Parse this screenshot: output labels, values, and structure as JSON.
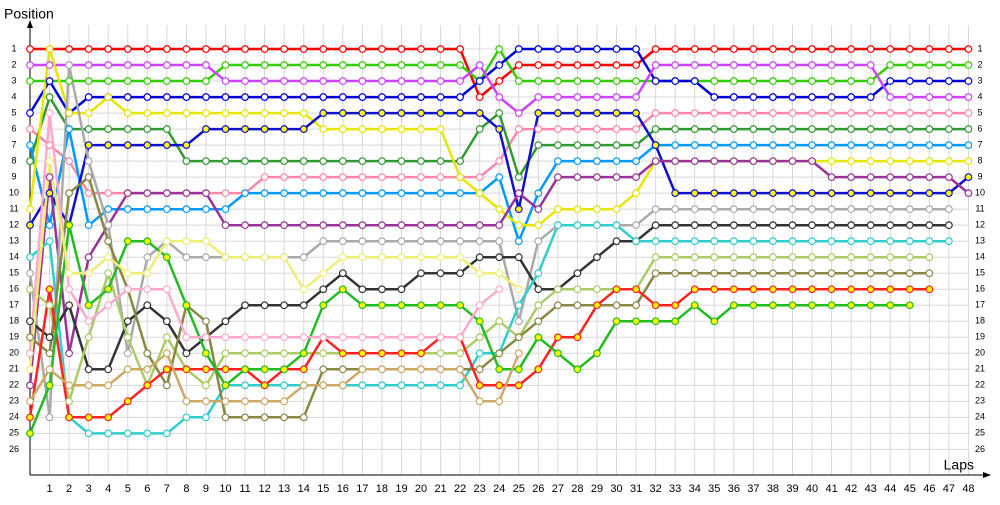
{
  "chart_data": {
    "type": "line",
    "y_label": "Position",
    "x_label": "Laps",
    "inverted_y": true,
    "grid": true,
    "x": [
      0,
      1,
      2,
      3,
      4,
      5,
      6,
      7,
      8,
      9,
      10,
      11,
      12,
      13,
      14,
      15,
      16,
      17,
      18,
      19,
      20,
      21,
      22,
      23,
      24,
      25,
      26,
      27,
      28,
      29,
      30,
      31,
      32,
      33,
      34,
      35,
      36,
      37,
      38,
      39,
      40,
      41,
      42,
      43,
      44,
      45,
      46,
      47,
      48
    ],
    "xlim": [
      0,
      49
    ],
    "xticks": [
      1,
      2,
      3,
      4,
      5,
      6,
      7,
      8,
      9,
      10,
      11,
      12,
      13,
      14,
      15,
      16,
      17,
      18,
      19,
      20,
      21,
      22,
      23,
      24,
      25,
      26,
      27,
      28,
      29,
      30,
      31,
      32,
      33,
      34,
      35,
      36,
      37,
      38,
      39,
      40,
      41,
      42,
      43,
      44,
      45,
      46,
      47,
      48
    ],
    "ylim": [
      27.6,
      0
    ],
    "yticks": [
      1,
      2,
      3,
      4,
      5,
      6,
      7,
      8,
      9,
      10,
      11,
      12,
      13,
      14,
      15,
      16,
      17,
      18,
      19,
      20,
      21,
      22,
      23,
      24,
      25,
      26
    ],
    "series": [
      {
        "color": "#ff0000",
        "values": [
          1,
          1,
          1,
          1,
          1,
          1,
          1,
          1,
          1,
          1,
          1,
          1,
          1,
          1,
          1,
          1,
          1,
          1,
          1,
          1,
          1,
          1,
          1,
          4,
          3,
          2,
          2,
          2,
          2,
          2,
          2,
          2,
          1,
          1,
          1,
          1,
          1,
          1,
          1,
          1,
          1,
          1,
          1,
          1,
          1,
          1,
          1,
          1,
          1
        ]
      },
      {
        "color": "#33cc00",
        "values": [
          3,
          3,
          3,
          3,
          3,
          3,
          3,
          3,
          3,
          3,
          2,
          2,
          2,
          2,
          2,
          2,
          2,
          2,
          2,
          2,
          2,
          2,
          2,
          3,
          1,
          3,
          3,
          3,
          3,
          3,
          3,
          3,
          3,
          3,
          3,
          3,
          3,
          3,
          3,
          3,
          3,
          3,
          3,
          3,
          2,
          2,
          2,
          2,
          2
        ]
      },
      {
        "color": "#0000dd",
        "values": [
          5,
          3,
          5,
          4,
          4,
          4,
          4,
          4,
          4,
          4,
          4,
          4,
          4,
          4,
          4,
          4,
          4,
          4,
          4,
          4,
          4,
          4,
          4,
          3,
          2,
          1,
          1,
          1,
          1,
          1,
          1,
          1,
          3,
          3,
          3,
          4,
          4,
          4,
          4,
          4,
          4,
          4,
          4,
          4,
          3,
          3,
          3,
          3,
          3
        ]
      },
      {
        "color": "#cc44ff",
        "values": [
          2,
          2,
          2,
          2,
          2,
          2,
          2,
          2,
          2,
          2,
          3,
          3,
          3,
          3,
          3,
          3,
          3,
          3,
          3,
          3,
          3,
          3,
          3,
          2,
          4,
          5,
          4,
          4,
          4,
          4,
          4,
          4,
          2,
          2,
          2,
          2,
          2,
          2,
          2,
          2,
          2,
          2,
          2,
          2,
          4,
          4,
          4,
          4,
          4
        ]
      },
      {
        "color": "#ff88aa",
        "values": [
          6,
          7,
          8,
          10,
          10,
          10,
          10,
          10,
          10,
          10,
          10,
          10,
          9,
          9,
          9,
          9,
          9,
          9,
          9,
          9,
          9,
          9,
          9,
          9,
          8,
          6,
          6,
          6,
          6,
          6,
          6,
          6,
          5,
          5,
          5,
          5,
          5,
          5,
          5,
          5,
          5,
          5,
          5,
          5,
          5,
          5,
          5,
          5,
          5
        ]
      },
      {
        "color": "#339933",
        "values": [
          8,
          4,
          6,
          6,
          6,
          6,
          6,
          6,
          8,
          8,
          8,
          8,
          8,
          8,
          8,
          8,
          8,
          8,
          8,
          8,
          8,
          8,
          8,
          6,
          5,
          9,
          7,
          7,
          7,
          7,
          7,
          7,
          6,
          6,
          6,
          6,
          6,
          6,
          6,
          6,
          6,
          6,
          6,
          6,
          6,
          6,
          6,
          6,
          6
        ]
      },
      {
        "color": "#0099ff",
        "values": [
          7,
          12,
          6,
          12,
          11,
          11,
          11,
          11,
          11,
          11,
          11,
          10,
          10,
          10,
          10,
          10,
          10,
          10,
          10,
          10,
          10,
          10,
          10,
          10,
          9,
          13,
          10,
          8,
          8,
          8,
          8,
          8,
          7,
          7,
          7,
          7,
          7,
          7,
          7,
          7,
          7,
          7,
          7,
          7,
          7,
          7,
          7,
          7,
          7
        ]
      },
      {
        "color": "#e6e600",
        "values": [
          11,
          1,
          5,
          5,
          4,
          5,
          5,
          5,
          5,
          5,
          5,
          5,
          5,
          5,
          5,
          6,
          6,
          6,
          6,
          6,
          6,
          6,
          9,
          10,
          11,
          12,
          12,
          11,
          11,
          11,
          11,
          10,
          8,
          8,
          8,
          8,
          8,
          8,
          8,
          8,
          8,
          8,
          8,
          8,
          8,
          8,
          8,
          8,
          8
        ]
      },
      {
        "color": "#1111cc",
        "marker_color": "#ffff00",
        "values": [
          12,
          10,
          12,
          7,
          7,
          7,
          7,
          7,
          7,
          6,
          6,
          6,
          6,
          6,
          6,
          5,
          5,
          5,
          5,
          5,
          5,
          5,
          5,
          5,
          6,
          11,
          5,
          5,
          5,
          5,
          5,
          5,
          7,
          10,
          10,
          10,
          10,
          10,
          10,
          10,
          10,
          10,
          10,
          10,
          10,
          10,
          10,
          10,
          9
        ]
      },
      {
        "color": "#993399",
        "values": [
          22,
          9,
          20,
          14,
          12,
          10,
          10,
          10,
          10,
          10,
          12,
          12,
          12,
          12,
          12,
          12,
          12,
          12,
          12,
          12,
          12,
          12,
          12,
          12,
          12,
          10,
          11,
          9,
          9,
          9,
          9,
          9,
          8,
          8,
          8,
          8,
          8,
          8,
          8,
          8,
          8,
          9,
          9,
          9,
          9,
          9,
          9,
          9,
          10
        ]
      },
      {
        "color": "#aaaaaa",
        "values": [
          15,
          24,
          2,
          8,
          12,
          20,
          14,
          13,
          14,
          14,
          14,
          14,
          14,
          14,
          14,
          13,
          13,
          13,
          13,
          13,
          13,
          13,
          13,
          13,
          13,
          18,
          13,
          12,
          12,
          12,
          12,
          12,
          11,
          11,
          11,
          11,
          11,
          11,
          11,
          11,
          11,
          11,
          11,
          11,
          11,
          11,
          11,
          11,
          null
        ]
      },
      {
        "color": "#333333",
        "values": [
          18,
          19,
          17,
          21,
          21,
          18,
          17,
          18,
          20,
          19,
          18,
          17,
          17,
          17,
          17,
          16,
          15,
          16,
          16,
          16,
          15,
          15,
          15,
          14,
          14,
          14,
          16,
          16,
          15,
          14,
          13,
          13,
          12,
          12,
          12,
          12,
          12,
          12,
          12,
          12,
          12,
          12,
          12,
          12,
          12,
          12,
          12,
          12,
          null
        ]
      },
      {
        "color": "#33cccc",
        "values": [
          14,
          13,
          24,
          25,
          25,
          25,
          25,
          25,
          24,
          24,
          22,
          22,
          22,
          22,
          22,
          22,
          22,
          22,
          22,
          22,
          22,
          22,
          22,
          20,
          20,
          17,
          15,
          12,
          12,
          12,
          12,
          13,
          13,
          13,
          13,
          13,
          13,
          13,
          13,
          13,
          13,
          13,
          13,
          13,
          13,
          13,
          13,
          13,
          null
        ]
      },
      {
        "color": "#aacc66",
        "values": [
          16,
          17,
          23,
          19,
          15,
          19,
          22,
          19,
          21,
          22,
          20,
          20,
          20,
          20,
          20,
          20,
          20,
          20,
          20,
          20,
          20,
          20,
          20,
          19,
          18,
          19,
          17,
          16,
          16,
          16,
          16,
          16,
          14,
          14,
          14,
          14,
          14,
          14,
          14,
          14,
          14,
          14,
          14,
          14,
          14,
          14,
          14,
          null,
          null
        ]
      },
      {
        "color": "#888844",
        "values": [
          19,
          20,
          10,
          9,
          13,
          16,
          20,
          22,
          17,
          18,
          24,
          24,
          24,
          24,
          24,
          21,
          21,
          21,
          21,
          21,
          21,
          21,
          21,
          21,
          20,
          19,
          18,
          17,
          17,
          17,
          17,
          17,
          15,
          15,
          15,
          15,
          15,
          15,
          15,
          15,
          15,
          15,
          15,
          15,
          15,
          15,
          15,
          null,
          null
        ]
      },
      {
        "color": "#ff2222",
        "marker_color": "#ffff00",
        "values": [
          24,
          16,
          24,
          24,
          24,
          23,
          22,
          21,
          21,
          21,
          21,
          21,
          22,
          21,
          21,
          19,
          20,
          20,
          20,
          20,
          20,
          19,
          19,
          22,
          22,
          22,
          21,
          19,
          19,
          17,
          16,
          16,
          17,
          17,
          16,
          16,
          16,
          16,
          16,
          16,
          16,
          16,
          16,
          16,
          16,
          16,
          16,
          null,
          null
        ]
      },
      {
        "color": "#22bb22",
        "marker_color": "#ffff00",
        "values": [
          25,
          22,
          12,
          17,
          16,
          13,
          13,
          14,
          17,
          20,
          22,
          21,
          21,
          21,
          20,
          17,
          16,
          17,
          17,
          17,
          17,
          17,
          17,
          18,
          21,
          21,
          19,
          20,
          21,
          20,
          18,
          18,
          18,
          18,
          17,
          18,
          17,
          17,
          17,
          17,
          17,
          17,
          17,
          17,
          17,
          17,
          null,
          null,
          null
        ]
      },
      {
        "color": "#ffaacc",
        "values": [
          20,
          5,
          16,
          18,
          17,
          16,
          16,
          16,
          19,
          19,
          19,
          19,
          19,
          19,
          19,
          19,
          19,
          19,
          19,
          19,
          19,
          19,
          19,
          17,
          16,
          null,
          null,
          null,
          null,
          null,
          null,
          null,
          null,
          null,
          null,
          null,
          null,
          null,
          null,
          null,
          null,
          null,
          null,
          null,
          null,
          null,
          null,
          null,
          null
        ]
      },
      {
        "color": "#eeee77",
        "values": [
          21,
          8,
          15,
          15,
          14,
          15,
          15,
          13,
          13,
          13,
          14,
          14,
          14,
          14,
          16,
          15,
          14,
          14,
          14,
          14,
          14,
          14,
          14,
          15,
          15,
          16,
          null,
          null,
          null,
          null,
          null,
          null,
          null,
          null,
          null,
          null,
          null,
          null,
          null,
          null,
          null,
          null,
          null,
          null,
          null,
          null,
          null,
          null,
          null
        ]
      },
      {
        "color": "#ccaa66",
        "values": [
          23,
          21,
          22,
          22,
          22,
          21,
          21,
          20,
          23,
          23,
          23,
          23,
          23,
          23,
          22,
          22,
          22,
          21,
          21,
          21,
          21,
          21,
          21,
          23,
          23,
          20,
          null,
          null,
          null,
          null,
          null,
          null,
          null,
          null,
          null,
          null,
          null,
          null,
          null,
          null,
          null,
          null,
          null,
          null,
          null,
          null,
          null,
          null,
          null
        ]
      }
    ]
  }
}
